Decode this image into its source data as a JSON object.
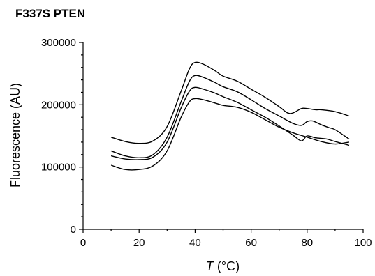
{
  "chart_data": {
    "type": "line",
    "title": "F337S PTEN",
    "xlabel_symbol": "T",
    "xlabel_unit": " (°C)",
    "ylabel": "Fluorescence (AU)",
    "xlim": [
      0,
      100
    ],
    "ylim": [
      0,
      300000
    ],
    "xticks": [
      0,
      20,
      40,
      60,
      80,
      100
    ],
    "yticks": [
      0,
      100000,
      200000,
      300000
    ],
    "ytick_labels": [
      "0",
      "100000",
      "200000",
      "300000"
    ],
    "grid": false,
    "legend": "none",
    "series": [
      {
        "x": [
          10,
          15,
          20,
          25,
          30,
          35,
          38,
          40,
          43,
          47,
          50,
          55,
          60,
          65,
          70,
          73,
          75,
          78,
          80,
          83,
          85,
          90,
          95
        ],
        "y": [
          148000,
          141000,
          138000,
          142000,
          165000,
          222000,
          258000,
          268000,
          265000,
          255000,
          246000,
          238000,
          225000,
          212000,
          197000,
          187000,
          187000,
          194000,
          194000,
          192000,
          192000,
          189000,
          182000
        ]
      },
      {
        "x": [
          10,
          15,
          20,
          25,
          30,
          35,
          38,
          40,
          43,
          47,
          50,
          55,
          60,
          65,
          70,
          75,
          78,
          80,
          82,
          85,
          88,
          90,
          95
        ],
        "y": [
          126000,
          118000,
          115000,
          120000,
          148000,
          205000,
          238000,
          247000,
          244000,
          236000,
          229000,
          221000,
          208000,
          194000,
          182000,
          170000,
          167000,
          173000,
          174000,
          168000,
          163000,
          160000,
          145000
        ]
      },
      {
        "x": [
          10,
          15,
          20,
          25,
          30,
          35,
          38,
          40,
          43,
          47,
          50,
          55,
          60,
          65,
          70,
          75,
          78,
          80,
          83,
          87,
          90,
          95
        ],
        "y": [
          118000,
          113000,
          112000,
          116000,
          140000,
          195000,
          222000,
          228000,
          225000,
          219000,
          213000,
          204000,
          192000,
          180000,
          166000,
          151000,
          142000,
          150000,
          147000,
          145000,
          141000,
          135000
        ]
      },
      {
        "x": [
          10,
          15,
          20,
          25,
          30,
          35,
          38,
          40,
          43,
          47,
          50,
          55,
          60,
          65,
          70,
          75,
          80,
          85,
          90,
          95
        ],
        "y": [
          103000,
          96000,
          96000,
          102000,
          126000,
          180000,
          205000,
          210000,
          208000,
          203000,
          199000,
          196000,
          188000,
          176000,
          164000,
          155000,
          148000,
          141000,
          137000,
          140000
        ]
      }
    ]
  }
}
